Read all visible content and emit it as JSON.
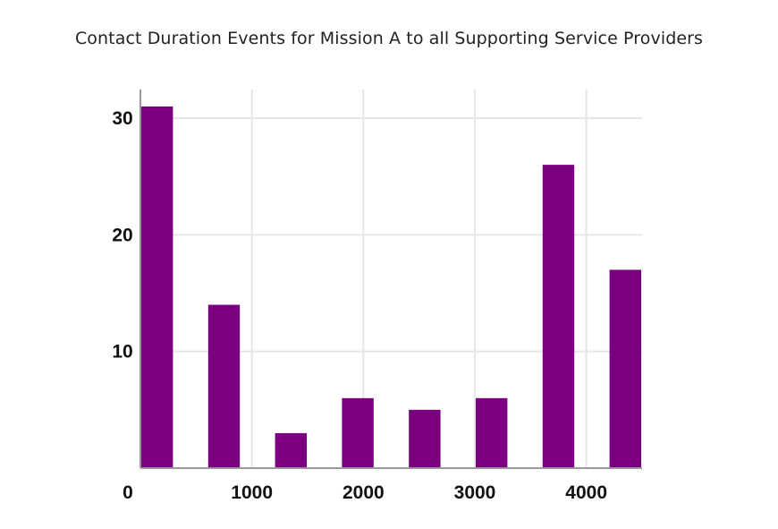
{
  "chart_data": {
    "type": "bar",
    "title": "Contact Duration Events for Mission A to all Supporting Service Providers",
    "xlabel": "",
    "ylabel": "",
    "x": [
      150,
      750,
      1350,
      1950,
      2550,
      3150,
      3750,
      4350
    ],
    "values": [
      31,
      14,
      3,
      6,
      5,
      6,
      26,
      17
    ],
    "bar_width": 300,
    "xlim": [
      0,
      4500
    ],
    "ylim": [
      0,
      32
    ],
    "x_ticks": [
      0,
      1000,
      2000,
      3000,
      4000
    ],
    "x_tick_labels": [
      "0",
      "1000",
      "2000",
      "3000",
      "4000"
    ],
    "y_ticks": [
      10,
      20,
      30
    ],
    "y_tick_labels": [
      "10",
      "20",
      "30"
    ],
    "grid": true,
    "legend": "none",
    "colors": {
      "bar": "#7a0080",
      "grid": "#e6e6e6",
      "axis": "#999999"
    }
  }
}
